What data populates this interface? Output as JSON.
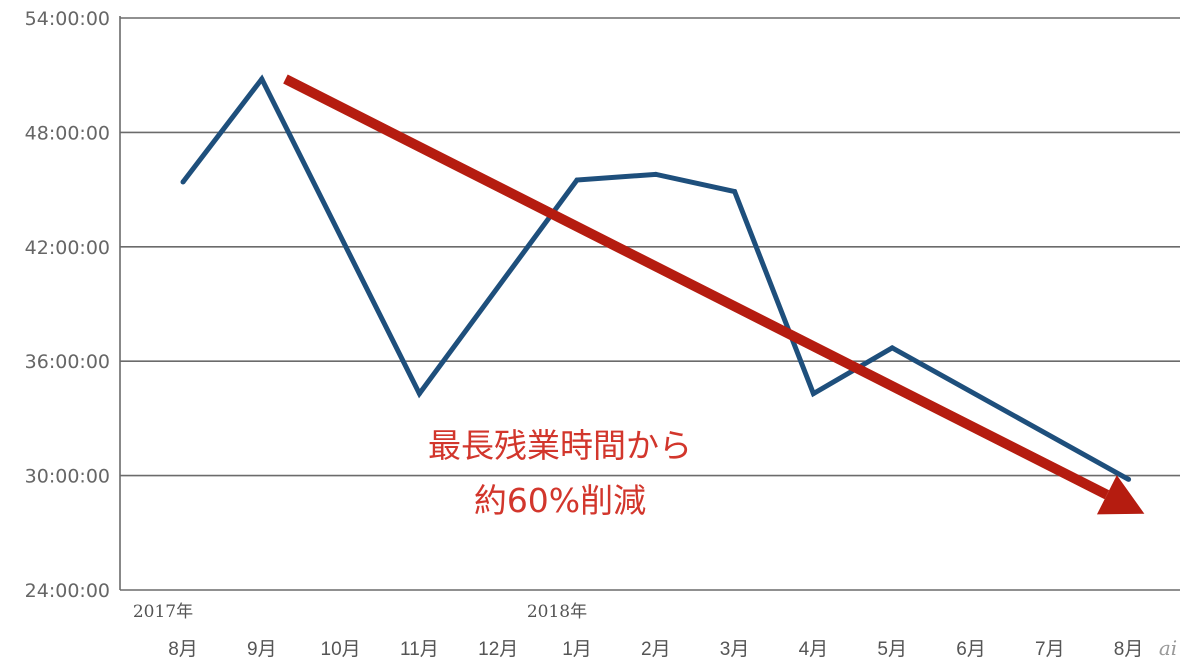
{
  "chart_data": {
    "type": "line",
    "y_ticks": [
      "54:00:00",
      "48:00:00",
      "42:00:00",
      "36:00:00",
      "30:00:00",
      "24:00:00"
    ],
    "ylim_hours": [
      24,
      54
    ],
    "year_labels": [
      {
        "text": "2017年",
        "category_index": 0
      },
      {
        "text": "2018年",
        "category_index": 5
      }
    ],
    "categories": [
      "8月",
      "9月",
      "10月",
      "11月",
      "12月",
      "1月",
      "2月",
      "3月",
      "4月",
      "5月",
      "6月",
      "7月",
      "8月"
    ],
    "series": [
      {
        "color": "#1e4f7c",
        "values_hours": [
          45.4,
          50.8,
          null,
          34.3,
          null,
          45.5,
          45.8,
          44.9,
          34.3,
          36.7,
          null,
          null,
          29.8
        ]
      }
    ],
    "grid": true,
    "annotation": {
      "line1": "最長残業時間から",
      "line2": "約60%削減",
      "color": "#d2362c"
    },
    "trend_arrow": {
      "color": "#b51c10",
      "from": {
        "category_index": 1.3,
        "hours": 50.8
      },
      "to": {
        "category_index": 12.2,
        "hours": 28.0
      }
    }
  },
  "watermark": "ai"
}
